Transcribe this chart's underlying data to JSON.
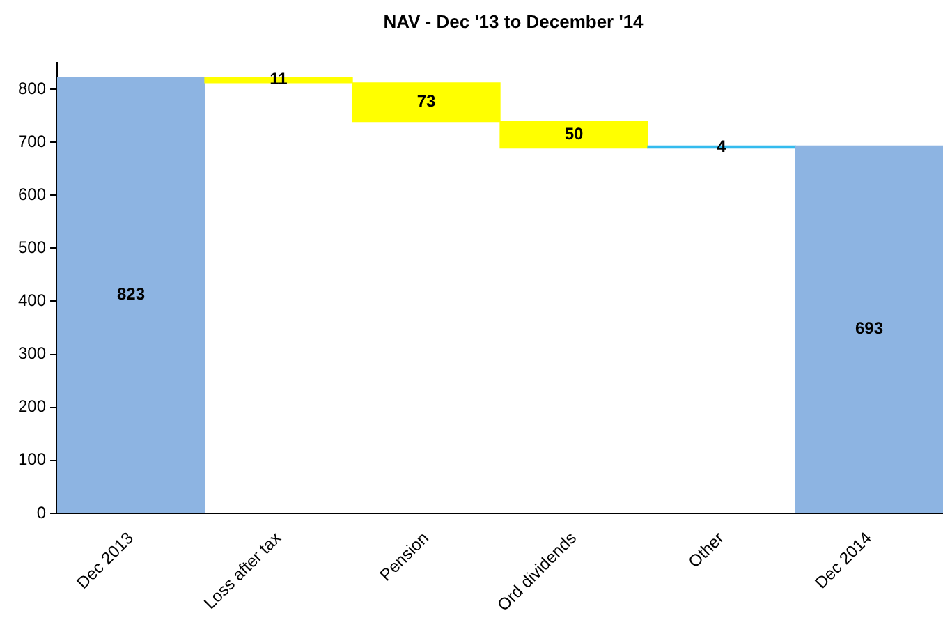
{
  "chart_data": {
    "type": "bar",
    "title": "NAV - Dec '13 to December '14",
    "categories": [
      "Dec 2013",
      "Loss after tax",
      "Pension",
      "Ord dividends",
      "Other",
      "Dec 2014"
    ],
    "values": [
      823,
      11,
      73,
      50,
      4,
      693
    ],
    "base": [
      0,
      812,
      739,
      689,
      689,
      0
    ],
    "colors": [
      "#8db4e2",
      "#ffff00",
      "#ffff00",
      "#ffff00",
      "#33bbee",
      "#8db4e2"
    ],
    "ylim": [
      0,
      850
    ],
    "yticks": [
      0,
      100,
      200,
      300,
      400,
      500,
      600,
      700,
      800
    ],
    "grid": false,
    "legend": false,
    "data_labels": true
  }
}
